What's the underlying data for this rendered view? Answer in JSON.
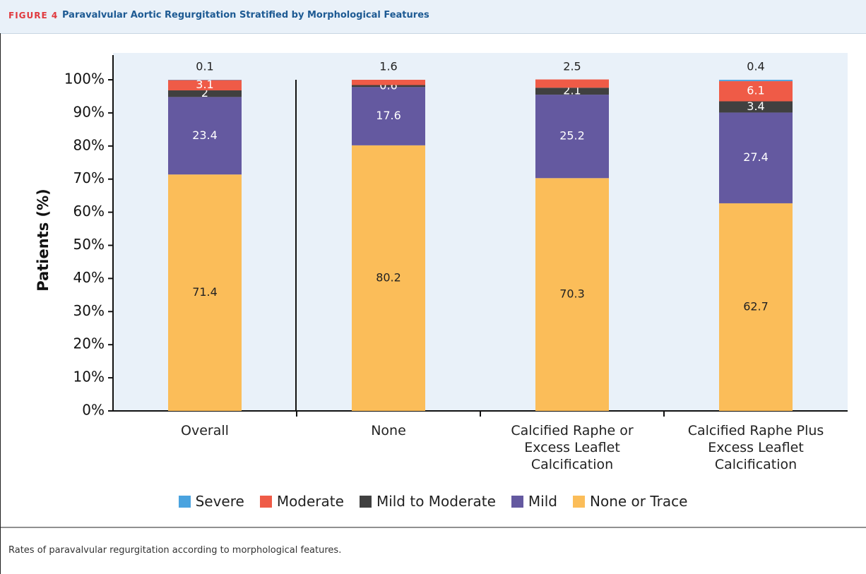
{
  "header": {
    "label": "FIGURE 4",
    "title": "Paravalvular Aortic Regurgitation Stratified by Morphological Features"
  },
  "chart_data": {
    "type": "stacked-bar",
    "ylabel": "Patients (%)",
    "categories": [
      "Overall",
      "None",
      "Calcified Raphe or Excess Leaflet Calcification",
      "Calcified Raphe Plus Excess Leaflet Calcification"
    ],
    "series": [
      {
        "name": "Severe",
        "color": "#4aa3df",
        "values": [
          0.1,
          null,
          null,
          0.4
        ]
      },
      {
        "name": "Moderate",
        "color": "#ef5b47",
        "values": [
          3.1,
          1.6,
          2.5,
          6.1
        ]
      },
      {
        "name": "Mild to Moderate",
        "color": "#404040",
        "values": [
          2.0,
          0.6,
          2.1,
          3.4
        ]
      },
      {
        "name": "Mild",
        "color": "#6459a0",
        "values": [
          23.4,
          17.6,
          25.2,
          27.4
        ]
      },
      {
        "name": "None or Trace",
        "color": "#fbbd59",
        "values": [
          71.4,
          80.2,
          70.3,
          62.7
        ]
      }
    ],
    "ylim": [
      0,
      100
    ],
    "yticks": [
      {
        "value": 0,
        "label": "0%"
      },
      {
        "value": 10,
        "label": "10%"
      },
      {
        "value": 20,
        "label": "20%"
      },
      {
        "value": 30,
        "label": "30%"
      },
      {
        "value": 40,
        "label": "40%"
      },
      {
        "value": 50,
        "label": "50%"
      },
      {
        "value": 60,
        "label": "60%"
      },
      {
        "value": 70,
        "label": "70%"
      },
      {
        "value": 80,
        "label": "80%"
      },
      {
        "value": 90,
        "label": "90%"
      },
      {
        "value": 100,
        "label": "100%"
      }
    ]
  },
  "caption": "Rates of paravalvular regurgitation according to morphological features."
}
